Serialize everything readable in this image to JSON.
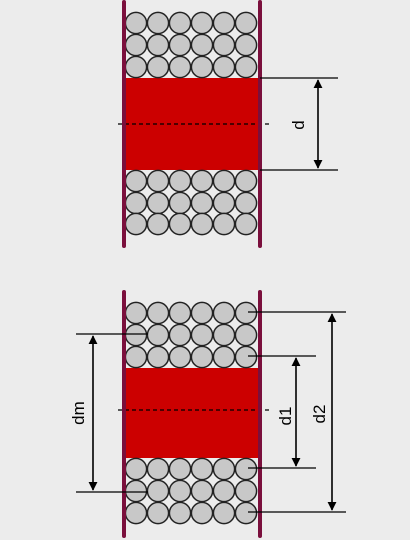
{
  "labels": {
    "d": "d",
    "dm": "dm",
    "d1": "d1",
    "d2": "d2"
  },
  "colors": {
    "background": "#ececec",
    "flange": "#7a0f3c",
    "core": "#cc0000",
    "wire": "#c8c8c8",
    "wire_outline": "#222222",
    "line": "#000000"
  },
  "diagrams": {
    "top": {
      "layers_per_side": 3,
      "wires_per_layer": 6,
      "dimension_labels": [
        "d"
      ]
    },
    "bottom": {
      "layers_per_side": 3,
      "wires_per_layer": 6,
      "dimension_labels": [
        "dm",
        "d1",
        "d2"
      ]
    }
  }
}
